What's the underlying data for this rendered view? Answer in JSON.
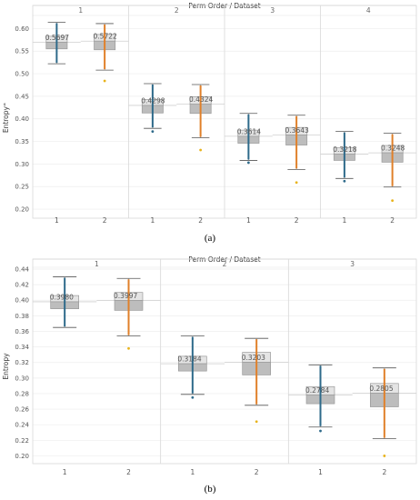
{
  "figure": {
    "caption_a": "(a)",
    "caption_b": "(b)"
  },
  "colors": {
    "dataset1": "#2e6a8a",
    "dataset2": "#e0802a",
    "box_light": "#e4e4e4",
    "box_dark": "#bdbdbd",
    "outlier": "#e8b31c"
  },
  "chart_data": [
    {
      "type": "boxplot",
      "title": "Perm Order / Dataset",
      "ylabel": "Entropy",
      "ylabel_suffix": "≐",
      "ylim": [
        0.18,
        0.625
      ],
      "yticks": [
        0.2,
        0.25,
        0.3,
        0.35,
        0.4,
        0.45,
        0.5,
        0.55,
        0.6
      ],
      "ytick_labels": [
        "0.20",
        "0.25",
        "0.30",
        "0.35",
        "0.40",
        "0.45",
        "0.50",
        "0.55",
        "0.60"
      ],
      "groups": [
        "1",
        "2",
        "3",
        "4"
      ],
      "datasets": [
        "1",
        "2"
      ],
      "boxes": [
        {
          "group": "1",
          "dataset": "1",
          "min": 0.522,
          "q1": 0.555,
          "median": 0.5697,
          "q3": 0.583,
          "max": 0.614,
          "label": "0.5697"
        },
        {
          "group": "1",
          "dataset": "2",
          "min": 0.508,
          "q1": 0.553,
          "median": 0.5722,
          "q3": 0.587,
          "max": 0.611,
          "label": "0.5722",
          "outliers": [
            0.484
          ]
        },
        {
          "group": "2",
          "dataset": "1",
          "min": 0.379,
          "q1": 0.413,
          "median": 0.4298,
          "q3": 0.443,
          "max": 0.478,
          "label": "0.4298",
          "outliers": [
            0.372
          ]
        },
        {
          "group": "2",
          "dataset": "2",
          "min": 0.358,
          "q1": 0.412,
          "median": 0.4324,
          "q3": 0.449,
          "max": 0.476,
          "label": "0.4324",
          "outliers": [
            0.331
          ]
        },
        {
          "group": "3",
          "dataset": "1",
          "min": 0.308,
          "q1": 0.346,
          "median": 0.3614,
          "q3": 0.375,
          "max": 0.412,
          "label": "0.3614",
          "outliers": [
            0.303
          ]
        },
        {
          "group": "3",
          "dataset": "2",
          "min": 0.288,
          "q1": 0.342,
          "median": 0.3643,
          "q3": 0.381,
          "max": 0.408,
          "label": "0.3643",
          "outliers": [
            0.259
          ]
        },
        {
          "group": "4",
          "dataset": "1",
          "min": 0.268,
          "q1": 0.308,
          "median": 0.3218,
          "q3": 0.336,
          "max": 0.372,
          "label": "0.3218",
          "outliers": [
            0.262
          ]
        },
        {
          "group": "4",
          "dataset": "2",
          "min": 0.249,
          "q1": 0.304,
          "median": 0.3248,
          "q3": 0.341,
          "max": 0.368,
          "label": "0.3248",
          "outliers": [
            0.219
          ]
        }
      ]
    },
    {
      "type": "boxplot",
      "title": "Perm Order / Dataset",
      "ylabel": "Entropy",
      "ylim": [
        0.19,
        0.44
      ],
      "yticks": [
        0.2,
        0.22,
        0.24,
        0.26,
        0.28,
        0.3,
        0.32,
        0.34,
        0.36,
        0.38,
        0.4,
        0.42,
        0.44
      ],
      "ytick_labels": [
        "0.20",
        "0.22",
        "0.24",
        "0.26",
        "0.28",
        "0.30",
        "0.32",
        "0.34",
        "0.36",
        "0.38",
        "0.40",
        "0.42",
        "0.44"
      ],
      "groups": [
        "1",
        "2",
        "3"
      ],
      "datasets": [
        "1",
        "2"
      ],
      "boxes": [
        {
          "group": "1",
          "dataset": "1",
          "min": 0.365,
          "q1": 0.389,
          "median": 0.398,
          "q3": 0.406,
          "max": 0.43,
          "label": "0.3980"
        },
        {
          "group": "1",
          "dataset": "2",
          "min": 0.354,
          "q1": 0.387,
          "median": 0.3997,
          "q3": 0.41,
          "max": 0.428,
          "label": "0.3997",
          "outliers": [
            0.338
          ]
        },
        {
          "group": "2",
          "dataset": "1",
          "min": 0.279,
          "q1": 0.309,
          "median": 0.3184,
          "q3": 0.328,
          "max": 0.354,
          "label": "0.3184",
          "outliers": [
            0.275
          ]
        },
        {
          "group": "2",
          "dataset": "2",
          "min": 0.265,
          "q1": 0.304,
          "median": 0.3203,
          "q3": 0.333,
          "max": 0.351,
          "label": "0.3203",
          "outliers": [
            0.244
          ]
        },
        {
          "group": "3",
          "dataset": "1",
          "min": 0.237,
          "q1": 0.267,
          "median": 0.2784,
          "q3": 0.289,
          "max": 0.317,
          "label": "0.2784",
          "outliers": [
            0.232
          ]
        },
        {
          "group": "3",
          "dataset": "2",
          "min": 0.222,
          "q1": 0.263,
          "median": 0.2805,
          "q3": 0.293,
          "max": 0.313,
          "label": "0.2805",
          "outliers": [
            0.2
          ]
        }
      ]
    }
  ]
}
